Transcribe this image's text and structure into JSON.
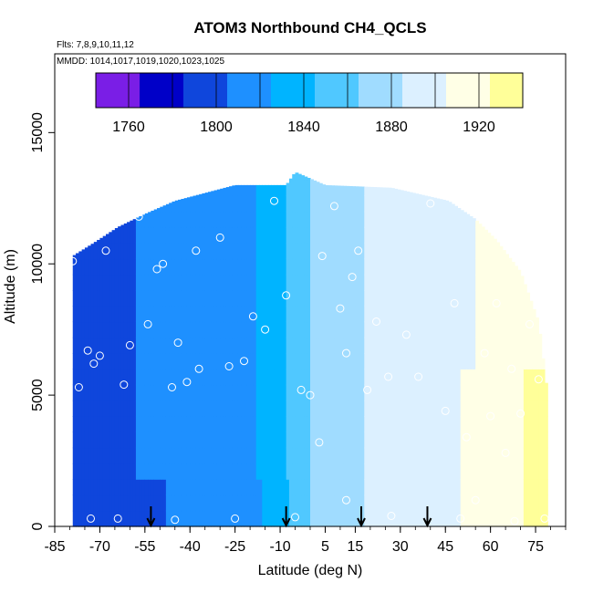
{
  "chart_data": {
    "type": "heatmap",
    "title": "ATOM3 Northbound CH4_QCLS",
    "flights_note": "Flts: 7,8,9,10,11,12",
    "dates_note": "MMDD: 1014,1017,1019,1020,1023,1025",
    "xlabel": "Latitude (deg N)",
    "ylabel": "Altitude (m)",
    "xlim": [
      -85,
      85
    ],
    "ylim": [
      0,
      18000
    ],
    "x_ticks": [
      -85,
      -70,
      -55,
      -40,
      -25,
      -10,
      5,
      15,
      30,
      45,
      60,
      75
    ],
    "x_tick_labels": [
      "-85",
      "-70",
      "-55",
      "-40",
      "-25",
      "-10",
      "5",
      "15",
      "30",
      "45",
      "60",
      "75"
    ],
    "y_ticks": [
      0,
      5000,
      10000,
      15000
    ],
    "y_tick_labels": [
      "0",
      "5000",
      "10000",
      "15000"
    ],
    "colorbar": {
      "range": [
        1745,
        1940
      ],
      "step": 20,
      "ticks": [
        1760,
        1800,
        1840,
        1880,
        1920
      ],
      "tick_labels": [
        "1760",
        "1800",
        "1840",
        "1880",
        "1920"
      ],
      "colors": [
        "#7a1ee6",
        "#0000c8",
        "#0f46dc",
        "#1e90ff",
        "#00b4ff",
        "#50c8ff",
        "#a0dcff",
        "#dcf0ff",
        "#ffffe6",
        "#ffff99",
        "#ffe14b",
        "#ffc300",
        "#ff9600",
        "#ff6400",
        "#ff0000",
        "#dc0000",
        "#b40000",
        "#a01e1e"
      ]
    },
    "field_profile": {
      "latitude": [
        -80,
        -65,
        -50,
        -35,
        -20,
        -10,
        -5,
        0,
        5,
        12,
        20,
        30,
        40,
        50,
        60,
        70,
        78
      ],
      "ch4_ppb": [
        1795,
        1802,
        1808,
        1814,
        1822,
        1840,
        1855,
        1866,
        1876,
        1882,
        1886,
        1890,
        1895,
        1905,
        1918,
        1924,
        1930
      ]
    },
    "data_top_altitude": [
      {
        "lat": -79,
        "alt": 10300
      },
      {
        "lat": -72,
        "alt": 10800
      },
      {
        "lat": -64,
        "alt": 11400
      },
      {
        "lat": -55,
        "alt": 11900
      },
      {
        "lat": -45,
        "alt": 12400
      },
      {
        "lat": -35,
        "alt": 12700
      },
      {
        "lat": -25,
        "alt": 13000
      },
      {
        "lat": -8,
        "alt": 13000
      },
      {
        "lat": -5,
        "alt": 13500
      },
      {
        "lat": 5,
        "alt": 13000
      },
      {
        "lat": 27,
        "alt": 12900
      },
      {
        "lat": 46,
        "alt": 12400
      },
      {
        "lat": 55,
        "alt": 11700
      },
      {
        "lat": 62,
        "alt": 10900
      },
      {
        "lat": 70,
        "alt": 9700
      },
      {
        "lat": 76,
        "alt": 7800
      },
      {
        "lat": 79,
        "alt": 5000
      }
    ],
    "sample_points": [
      {
        "lat": -82,
        "alt": 7800
      },
      {
        "lat": -79,
        "alt": 10100
      },
      {
        "lat": -77,
        "alt": 5300
      },
      {
        "lat": -74,
        "alt": 6700
      },
      {
        "lat": -72,
        "alt": 6200
      },
      {
        "lat": -70,
        "alt": 6500
      },
      {
        "lat": -68,
        "alt": 10500
      },
      {
        "lat": -64,
        "alt": 300
      },
      {
        "lat": -62,
        "alt": 5400
      },
      {
        "lat": -60,
        "alt": 6900
      },
      {
        "lat": -57,
        "alt": 11800
      },
      {
        "lat": -54,
        "alt": 7700
      },
      {
        "lat": -51,
        "alt": 9800
      },
      {
        "lat": -49,
        "alt": 10000
      },
      {
        "lat": -46,
        "alt": 5300
      },
      {
        "lat": -44,
        "alt": 7000
      },
      {
        "lat": -41,
        "alt": 5500
      },
      {
        "lat": -37,
        "alt": 6000
      },
      {
        "lat": -38,
        "alt": 10500
      },
      {
        "lat": -30,
        "alt": 11000
      },
      {
        "lat": -27,
        "alt": 6100
      },
      {
        "lat": -22,
        "alt": 6300
      },
      {
        "lat": -19,
        "alt": 8000
      },
      {
        "lat": -15,
        "alt": 7500
      },
      {
        "lat": -12,
        "alt": 12400
      },
      {
        "lat": -8,
        "alt": 8800
      },
      {
        "lat": -3,
        "alt": 5200
      },
      {
        "lat": 0,
        "alt": 5000
      },
      {
        "lat": 3,
        "alt": 3200
      },
      {
        "lat": 4,
        "alt": 10300
      },
      {
        "lat": 8,
        "alt": 12200
      },
      {
        "lat": 10,
        "alt": 8300
      },
      {
        "lat": 12,
        "alt": 6600
      },
      {
        "lat": 14,
        "alt": 9500
      },
      {
        "lat": 16,
        "alt": 10500
      },
      {
        "lat": 19,
        "alt": 5200
      },
      {
        "lat": 22,
        "alt": 7800
      },
      {
        "lat": 26,
        "alt": 5700
      },
      {
        "lat": 32,
        "alt": 7300
      },
      {
        "lat": 36,
        "alt": 5700
      },
      {
        "lat": 40,
        "alt": 12300
      },
      {
        "lat": 45,
        "alt": 4400
      },
      {
        "lat": 48,
        "alt": 8500
      },
      {
        "lat": 52,
        "alt": 3400
      },
      {
        "lat": 55,
        "alt": 1000
      },
      {
        "lat": 58,
        "alt": 6600
      },
      {
        "lat": 60,
        "alt": 4200
      },
      {
        "lat": 62,
        "alt": 8500
      },
      {
        "lat": 65,
        "alt": 2800
      },
      {
        "lat": 67,
        "alt": 6000
      },
      {
        "lat": 70,
        "alt": 4300
      },
      {
        "lat": 73,
        "alt": 7700
      },
      {
        "lat": 76,
        "alt": 5600
      },
      {
        "lat": 78,
        "alt": 300
      },
      {
        "lat": -73,
        "alt": 300
      },
      {
        "lat": -45,
        "alt": 250
      },
      {
        "lat": -25,
        "alt": 300
      },
      {
        "lat": -5,
        "alt": 350
      },
      {
        "lat": 12,
        "alt": 1000
      },
      {
        "lat": 27,
        "alt": 400
      },
      {
        "lat": 50,
        "alt": 300
      },
      {
        "lat": 68,
        "alt": 200
      }
    ],
    "arrows": [
      {
        "lat": -53,
        "label": ""
      },
      {
        "lat": -8,
        "label": ""
      },
      {
        "lat": 17,
        "label": ""
      },
      {
        "lat": 39,
        "label": ""
      }
    ]
  }
}
